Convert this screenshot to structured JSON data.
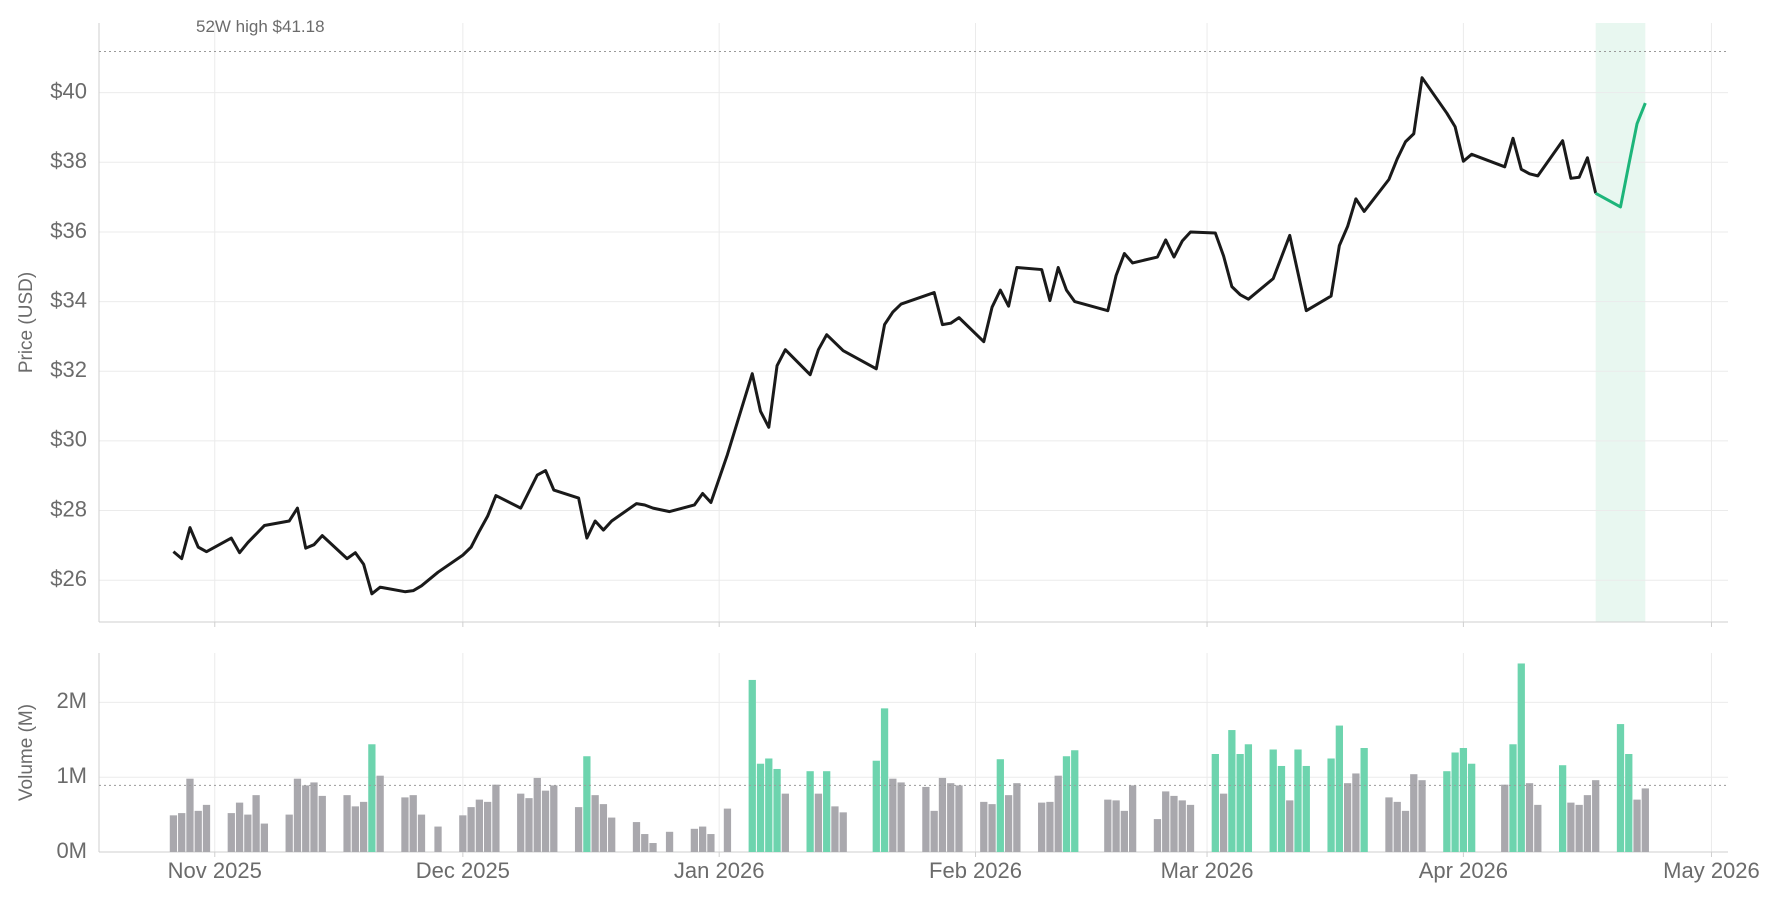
{
  "chart_data": [
    {
      "type": "line",
      "y_label": "Price (USD)",
      "xlim": [
        -14,
        183
      ],
      "xticks": [
        0,
        30,
        61,
        92,
        120,
        151,
        181
      ],
      "ylim": [
        24.8,
        42
      ],
      "yticks": [
        {
          "value": 26,
          "label": "$26"
        },
        {
          "value": 28,
          "label": "$28"
        },
        {
          "value": 30,
          "label": "$30"
        },
        {
          "value": 32,
          "label": "$32"
        },
        {
          "value": 34,
          "label": "$34"
        },
        {
          "value": 36,
          "label": "$36"
        },
        {
          "value": 38,
          "label": "$38"
        },
        {
          "value": 40,
          "label": "$40"
        }
      ],
      "grid": true,
      "reference_line": {
        "value": 41.18,
        "label": "52W high $41.18"
      },
      "highlight": [
        167,
        173
      ],
      "highlight_color": "#e8f7f0",
      "series": [
        {
          "color": "#1a1a1a",
          "x": [
            -5,
            -4,
            -3,
            -2,
            -1,
            2,
            3,
            4,
            6,
            9,
            10,
            11,
            12,
            13,
            16,
            17,
            18,
            19,
            20,
            23,
            24,
            25,
            27,
            30,
            31,
            32,
            33,
            34,
            37,
            39,
            40,
            41,
            44,
            45,
            46,
            47,
            48,
            51,
            52,
            53,
            55,
            58,
            59,
            60,
            62,
            65,
            66,
            67,
            68,
            69,
            72,
            73,
            74,
            76,
            80,
            81,
            82,
            83,
            87,
            88,
            89,
            90,
            93,
            94,
            95,
            96,
            97,
            100,
            101,
            102,
            103,
            104,
            108,
            109,
            110,
            111,
            114,
            115,
            116,
            117,
            118,
            121,
            122,
            123,
            124,
            125,
            128,
            130,
            132,
            135,
            136,
            137,
            138,
            139,
            142,
            143,
            144,
            145,
            146,
            149,
            150,
            151,
            152,
            156,
            157,
            158,
            159,
            160,
            163,
            164,
            165,
            166,
            167
          ],
          "values": [
            26.82,
            26.62,
            27.51,
            26.95,
            26.82,
            27.21,
            26.79,
            27.08,
            27.57,
            27.7,
            28.07,
            26.92,
            27.02,
            27.28,
            26.62,
            26.79,
            26.46,
            25.61,
            25.8,
            25.67,
            25.7,
            25.84,
            26.23,
            26.72,
            26.95,
            27.41,
            27.84,
            28.43,
            28.07,
            29.02,
            29.15,
            28.59,
            28.36,
            27.21,
            27.7,
            27.44,
            27.7,
            28.2,
            28.16,
            28.07,
            27.97,
            28.16,
            28.49,
            28.23,
            29.61,
            31.93,
            30.85,
            30.39,
            32.16,
            32.62,
            31.9,
            32.62,
            33.05,
            32.59,
            32.07,
            33.34,
            33.7,
            33.93,
            34.26,
            33.34,
            33.38,
            33.54,
            32.85,
            33.84,
            34.33,
            33.87,
            34.98,
            34.92,
            34.03,
            34.98,
            34.33,
            34.0,
            33.74,
            34.75,
            35.38,
            35.11,
            35.28,
            35.77,
            35.28,
            35.74,
            36.0,
            35.97,
            35.31,
            34.43,
            34.2,
            34.07,
            34.66,
            35.9,
            33.74,
            34.16,
            35.61,
            36.16,
            36.95,
            36.59,
            37.51,
            38.1,
            38.59,
            38.82,
            40.43,
            39.41,
            39.02,
            38.03,
            38.23,
            37.87,
            38.69,
            37.8,
            37.67,
            37.61,
            38.62,
            37.54,
            37.57,
            38.13,
            37.11
          ]
        },
        {
          "color": "#1db57a",
          "x": [
            167,
            170,
            171,
            172,
            173
          ],
          "values": [
            37.11,
            36.72,
            37.93,
            39.11,
            39.7
          ]
        }
      ]
    },
    {
      "type": "bar",
      "y_label": "Volume (M)",
      "xlim": [
        -14,
        183
      ],
      "xticks": [
        {
          "value": 0,
          "label": "Nov 2025"
        },
        {
          "value": 30,
          "label": "Dec 2025"
        },
        {
          "value": 61,
          "label": "Jan 2026"
        },
        {
          "value": 92,
          "label": "Feb 2026"
        },
        {
          "value": 120,
          "label": "Mar 2026"
        },
        {
          "value": 151,
          "label": "Apr 2026"
        },
        {
          "value": 181,
          "label": "May 2026"
        }
      ],
      "ylim": [
        0,
        2.66
      ],
      "yticks": [
        {
          "value": 0,
          "label": "0M"
        },
        {
          "value": 1,
          "label": "1M"
        },
        {
          "value": 2,
          "label": "2M"
        }
      ],
      "grid": true,
      "reference_line": {
        "value": 0.89
      },
      "series": [
        {
          "color": "#a9a8ad",
          "x": [
            -5,
            -4,
            -3,
            -2,
            -1,
            2,
            3,
            4,
            5,
            6,
            9,
            10,
            11,
            12,
            13,
            16,
            17,
            18,
            20,
            23,
            24,
            25,
            27,
            30,
            31,
            32,
            33,
            34,
            37,
            38,
            39,
            40,
            41,
            44,
            46,
            47,
            48,
            51,
            52,
            53,
            55,
            58,
            59,
            60,
            62,
            69,
            73,
            75,
            76,
            82,
            83,
            86,
            87,
            88,
            89,
            90,
            93,
            94,
            96,
            97,
            100,
            101,
            102,
            108,
            109,
            110,
            111,
            114,
            115,
            116,
            117,
            118,
            122,
            130,
            137,
            138,
            142,
            143,
            144,
            145,
            146,
            156,
            159,
            160,
            164,
            165,
            166,
            167,
            172,
            173
          ],
          "values": [
            0.49,
            0.52,
            0.98,
            0.55,
            0.63,
            0.52,
            0.66,
            0.5,
            0.76,
            0.38,
            0.5,
            0.98,
            0.89,
            0.93,
            0.75,
            0.76,
            0.61,
            0.67,
            1.02,
            0.73,
            0.76,
            0.5,
            0.34,
            0.49,
            0.6,
            0.7,
            0.67,
            0.9,
            0.78,
            0.72,
            0.99,
            0.82,
            0.89,
            0.6,
            0.76,
            0.64,
            0.46,
            0.4,
            0.24,
            0.12,
            0.27,
            0.31,
            0.34,
            0.24,
            0.58,
            0.78,
            0.78,
            0.61,
            0.53,
            0.98,
            0.93,
            0.87,
            0.55,
            0.99,
            0.92,
            0.89,
            0.67,
            0.64,
            0.76,
            0.92,
            0.66,
            0.67,
            1.02,
            0.7,
            0.69,
            0.55,
            0.89,
            0.44,
            0.81,
            0.75,
            0.69,
            0.63,
            0.78,
            0.69,
            0.92,
            1.05,
            0.73,
            0.67,
            0.55,
            1.04,
            0.96,
            0.9,
            0.92,
            0.63,
            0.66,
            0.63,
            0.76,
            0.96,
            0.7,
            0.85
          ]
        },
        {
          "color": "#6dd4ae",
          "x": [
            19,
            45,
            65,
            66,
            67,
            68,
            72,
            74,
            80,
            81,
            95,
            103,
            104,
            121,
            123,
            124,
            125,
            128,
            129,
            131,
            132,
            135,
            136,
            139,
            149,
            150,
            151,
            152,
            157,
            158,
            163,
            170,
            171
          ],
          "values": [
            1.44,
            1.28,
            2.3,
            1.18,
            1.25,
            1.11,
            1.08,
            1.08,
            1.22,
            1.92,
            1.24,
            1.28,
            1.36,
            1.31,
            1.63,
            1.31,
            1.44,
            1.37,
            1.15,
            1.37,
            1.15,
            1.25,
            1.69,
            1.39,
            1.08,
            1.33,
            1.39,
            1.18,
            1.44,
            2.52,
            1.16,
            1.71,
            1.31
          ]
        }
      ]
    }
  ]
}
